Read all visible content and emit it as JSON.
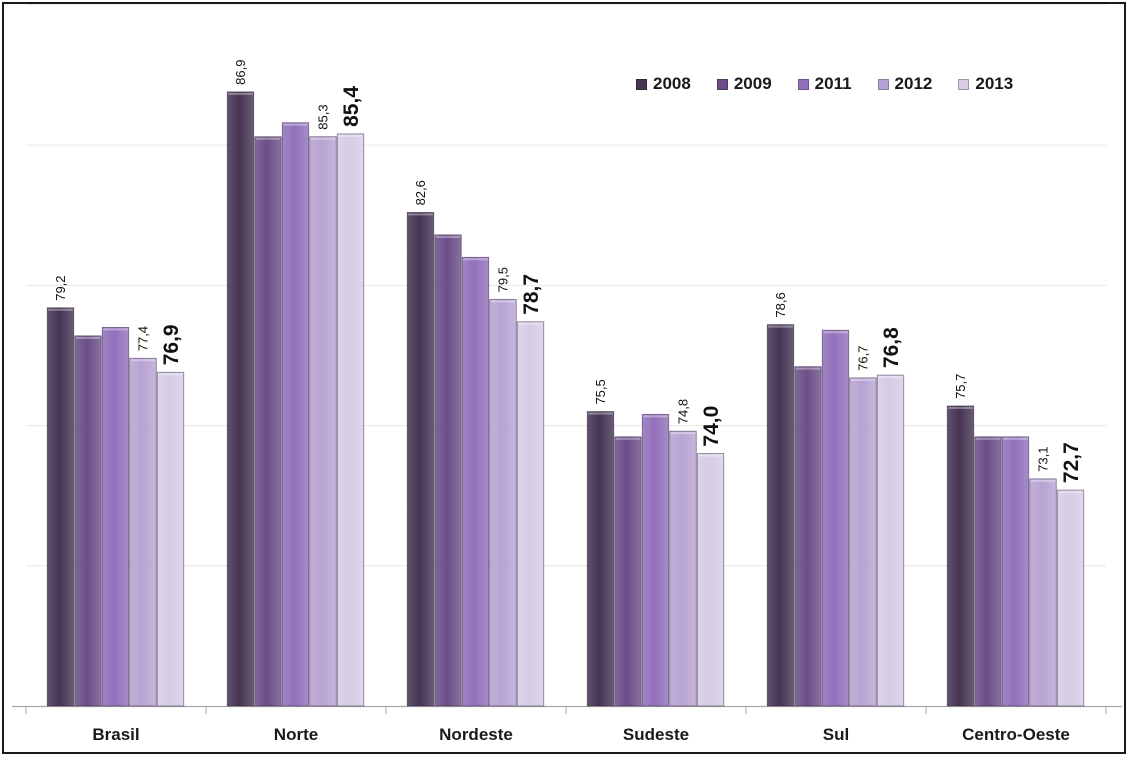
{
  "chart_data": {
    "type": "bar",
    "title": "",
    "xlabel": "",
    "ylabel": "",
    "ylim": [
      65,
      90
    ],
    "grid": true,
    "legend_position": "top-right",
    "categories": [
      "Brasil",
      "Norte",
      "Nordeste",
      "Sudeste",
      "Sul",
      "Centro-Oeste"
    ],
    "series": [
      {
        "name": "2008",
        "color": "#453452",
        "values": [
          79.2,
          86.9,
          82.6,
          75.5,
          78.6,
          75.7
        ]
      },
      {
        "name": "2009",
        "color": "#6b4e87",
        "values": [
          78.2,
          85.3,
          81.8,
          74.6,
          77.1,
          74.6
        ]
      },
      {
        "name": "2011",
        "color": "#9270bb",
        "values": [
          78.5,
          85.8,
          81.0,
          75.4,
          78.4,
          74.6
        ]
      },
      {
        "name": "2012",
        "color": "#b7a3d3",
        "values": [
          77.4,
          85.3,
          79.5,
          74.8,
          76.7,
          73.1
        ]
      },
      {
        "name": "2013",
        "color": "#d6cce5",
        "values": [
          76.9,
          85.4,
          78.7,
          74.0,
          76.8,
          72.7
        ]
      }
    ],
    "data_labels": [
      {
        "category": "Brasil",
        "labels": [
          {
            "series": 0,
            "text": "79,2",
            "emph": false
          },
          {
            "series": 3,
            "text": "77,4",
            "emph": false
          },
          {
            "series": 4,
            "text": "76,9",
            "emph": true
          }
        ]
      },
      {
        "category": "Norte",
        "labels": [
          {
            "series": 0,
            "text": "86,9",
            "emph": false
          },
          {
            "series": 3,
            "text": "85,3",
            "emph": false
          },
          {
            "series": 4,
            "text": "85,4",
            "emph": true
          }
        ]
      },
      {
        "category": "Nordeste",
        "labels": [
          {
            "series": 0,
            "text": "82,6",
            "emph": false
          },
          {
            "series": 3,
            "text": "79,5",
            "emph": false
          },
          {
            "series": 4,
            "text": "78,7",
            "emph": true
          }
        ]
      },
      {
        "category": "Sudeste",
        "labels": [
          {
            "series": 0,
            "text": "75,5",
            "emph": false
          },
          {
            "series": 3,
            "text": "74,8",
            "emph": false
          },
          {
            "series": 4,
            "text": "74,0",
            "emph": true
          }
        ]
      },
      {
        "category": "Sul",
        "labels": [
          {
            "series": 0,
            "text": "78,6",
            "emph": false
          },
          {
            "series": 3,
            "text": "76,7",
            "emph": false
          },
          {
            "series": 4,
            "text": "76,8",
            "emph": true
          }
        ]
      },
      {
        "category": "Centro-Oeste",
        "labels": [
          {
            "series": 0,
            "text": "75,7",
            "emph": false
          },
          {
            "series": 3,
            "text": "73,1",
            "emph": false
          },
          {
            "series": 4,
            "text": "72,7",
            "emph": true
          }
        ]
      }
    ]
  }
}
